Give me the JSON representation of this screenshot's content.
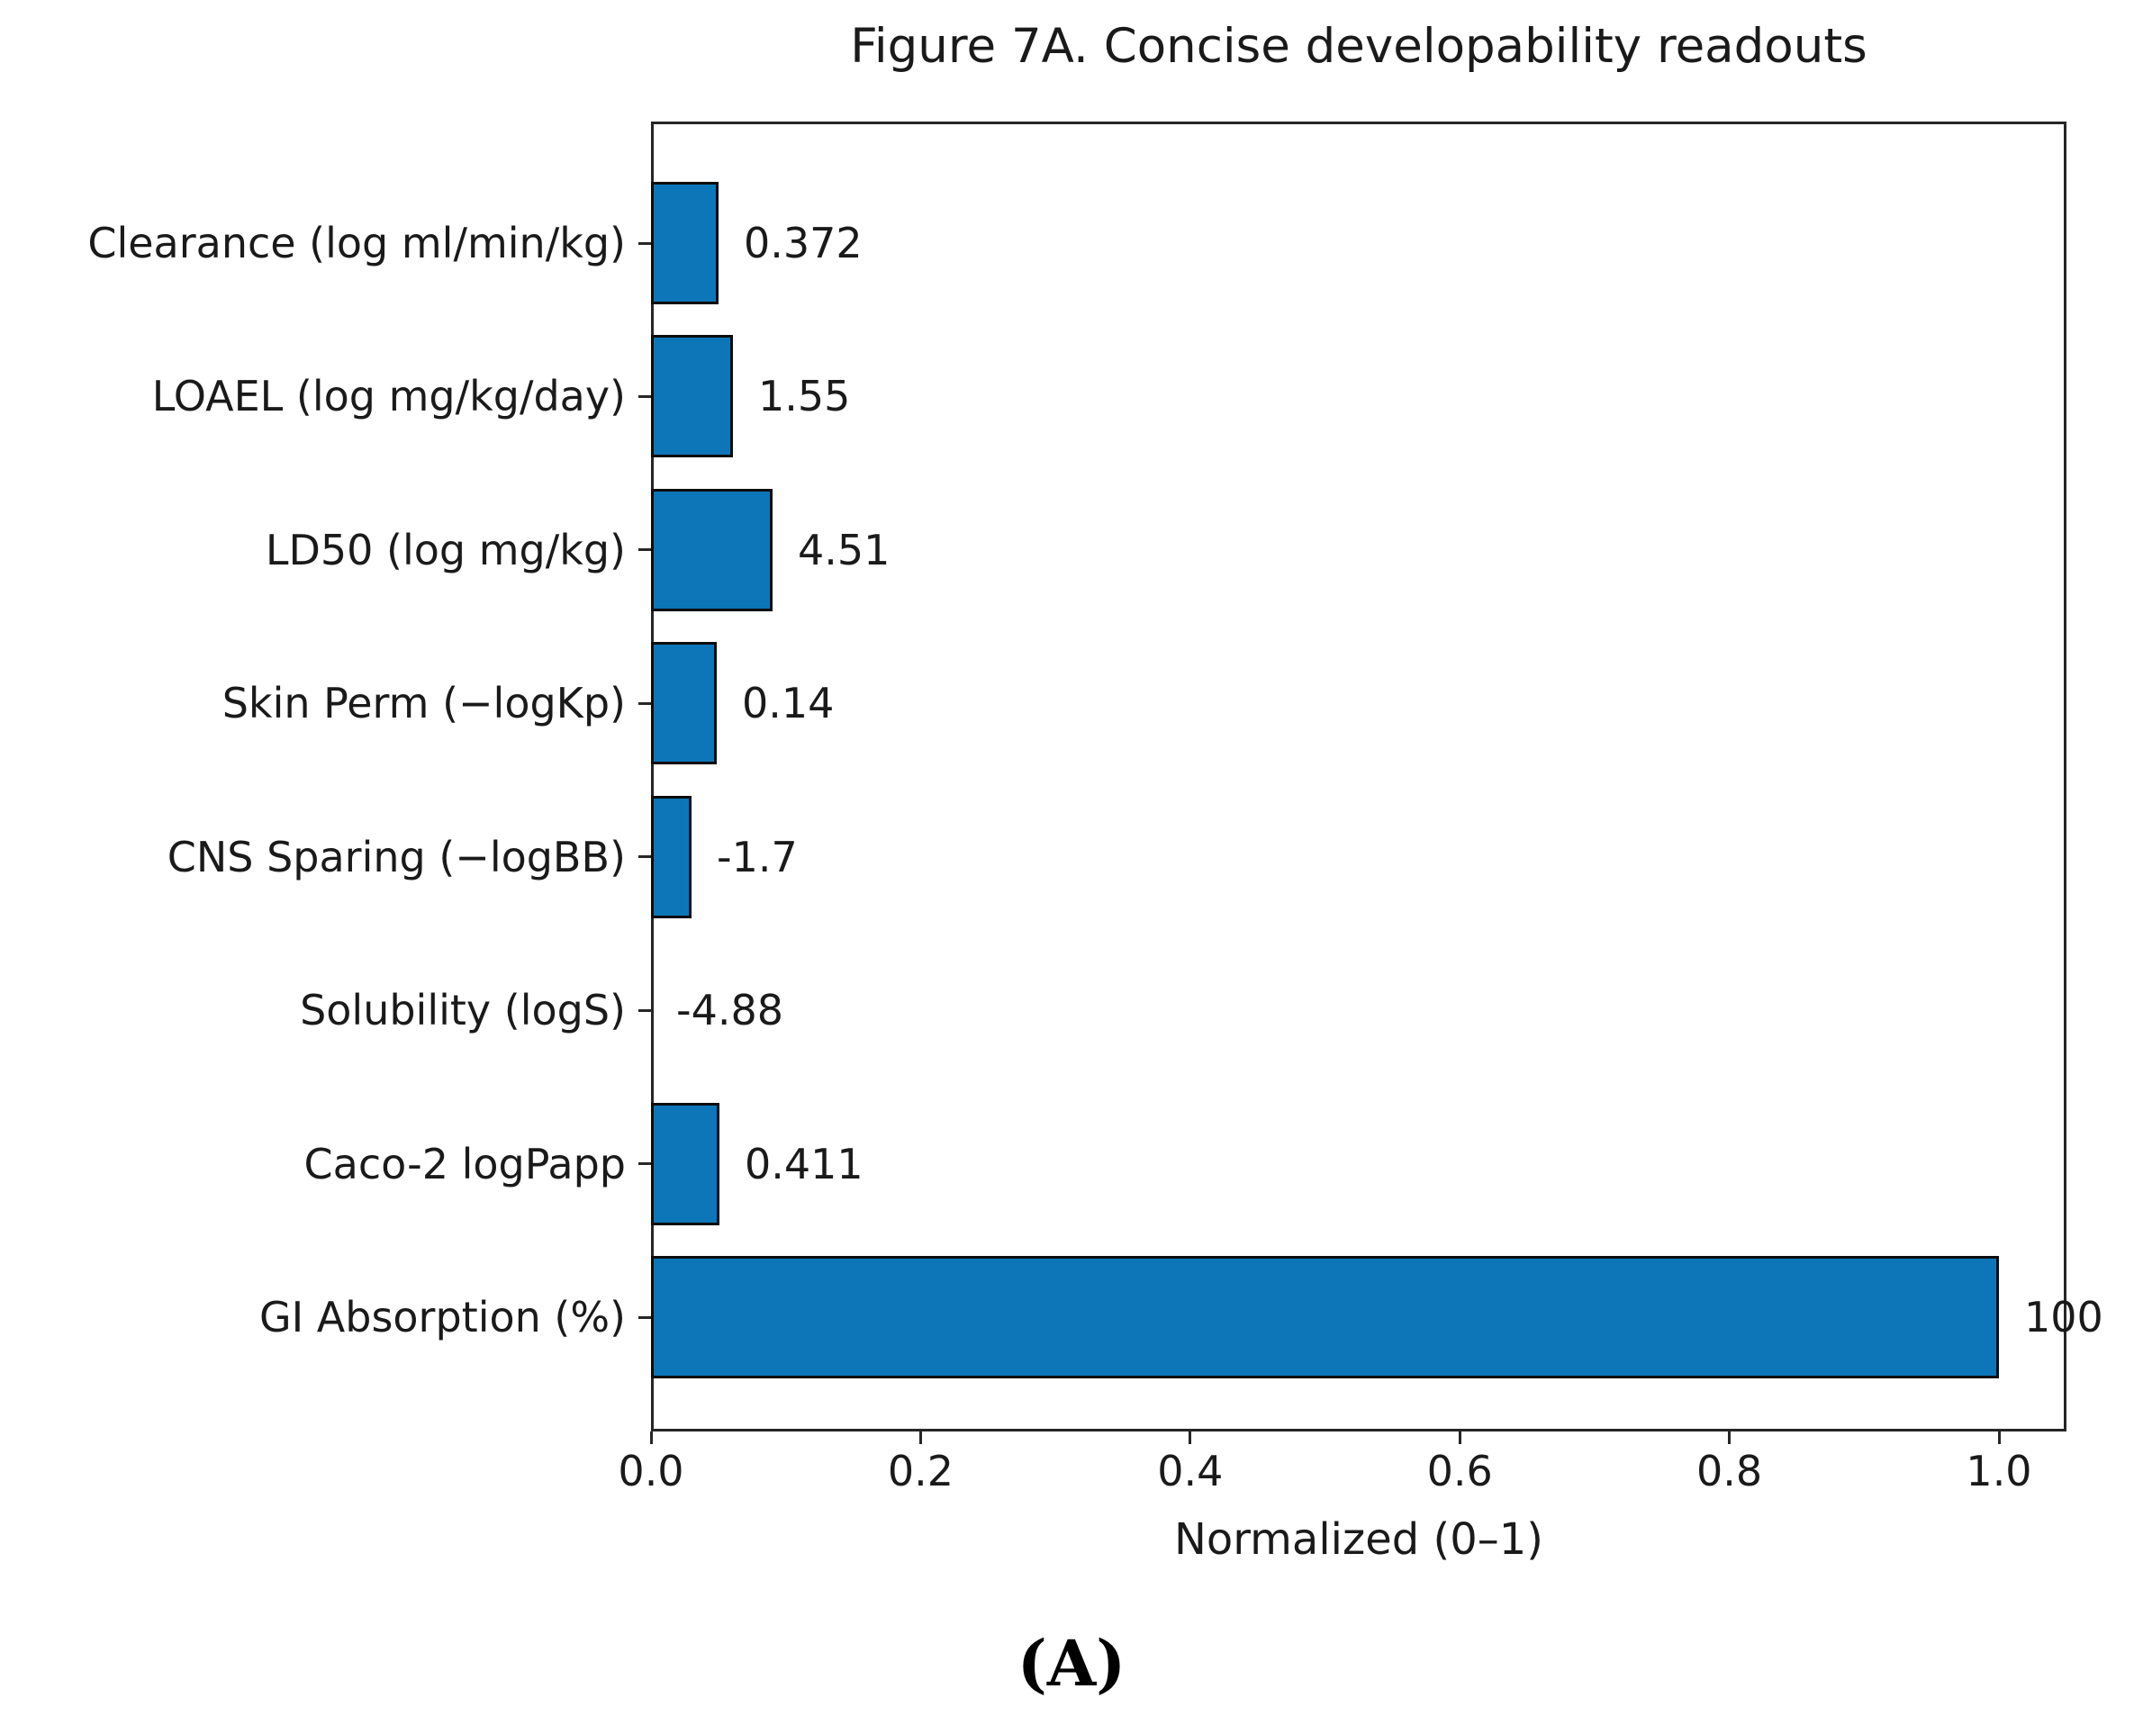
{
  "chart_data": {
    "type": "bar",
    "orientation": "horizontal",
    "title": "Figure 7A. Concise developability readouts",
    "xlabel": "Normalized (0–1)",
    "panel_label": "(A)",
    "categories": [
      "Clearance (log ml/min/kg)",
      "LOAEL (log mg/kg/day)",
      "LD50 (log mg/kg)",
      "Skin Perm (−logKp)",
      "CNS Sparing (−logBB)",
      "Solubility (logS)",
      "Caco-2 logPapp",
      "GI Absorption (%)"
    ],
    "normalized_values": [
      0.05,
      0.061,
      0.09,
      0.049,
      0.03,
      0.0,
      0.051,
      1.0
    ],
    "value_labels": [
      "0.372",
      "1.55",
      "4.51",
      "0.14",
      "-1.7",
      "-4.88",
      "0.411",
      "100"
    ],
    "xlim": [
      0.0,
      1.05
    ],
    "xticks": [
      0.0,
      0.2,
      0.4,
      0.6,
      0.8,
      1.0
    ],
    "xtick_labels": [
      "0.0",
      "0.2",
      "0.4",
      "0.6",
      "0.8",
      "1.0"
    ],
    "grid": false,
    "legend": "none",
    "colors": {
      "bar_fill": "#0d76b8",
      "bar_edge": "#0d0d0d",
      "axis": "#262626",
      "text": "#1a1a1a"
    }
  }
}
